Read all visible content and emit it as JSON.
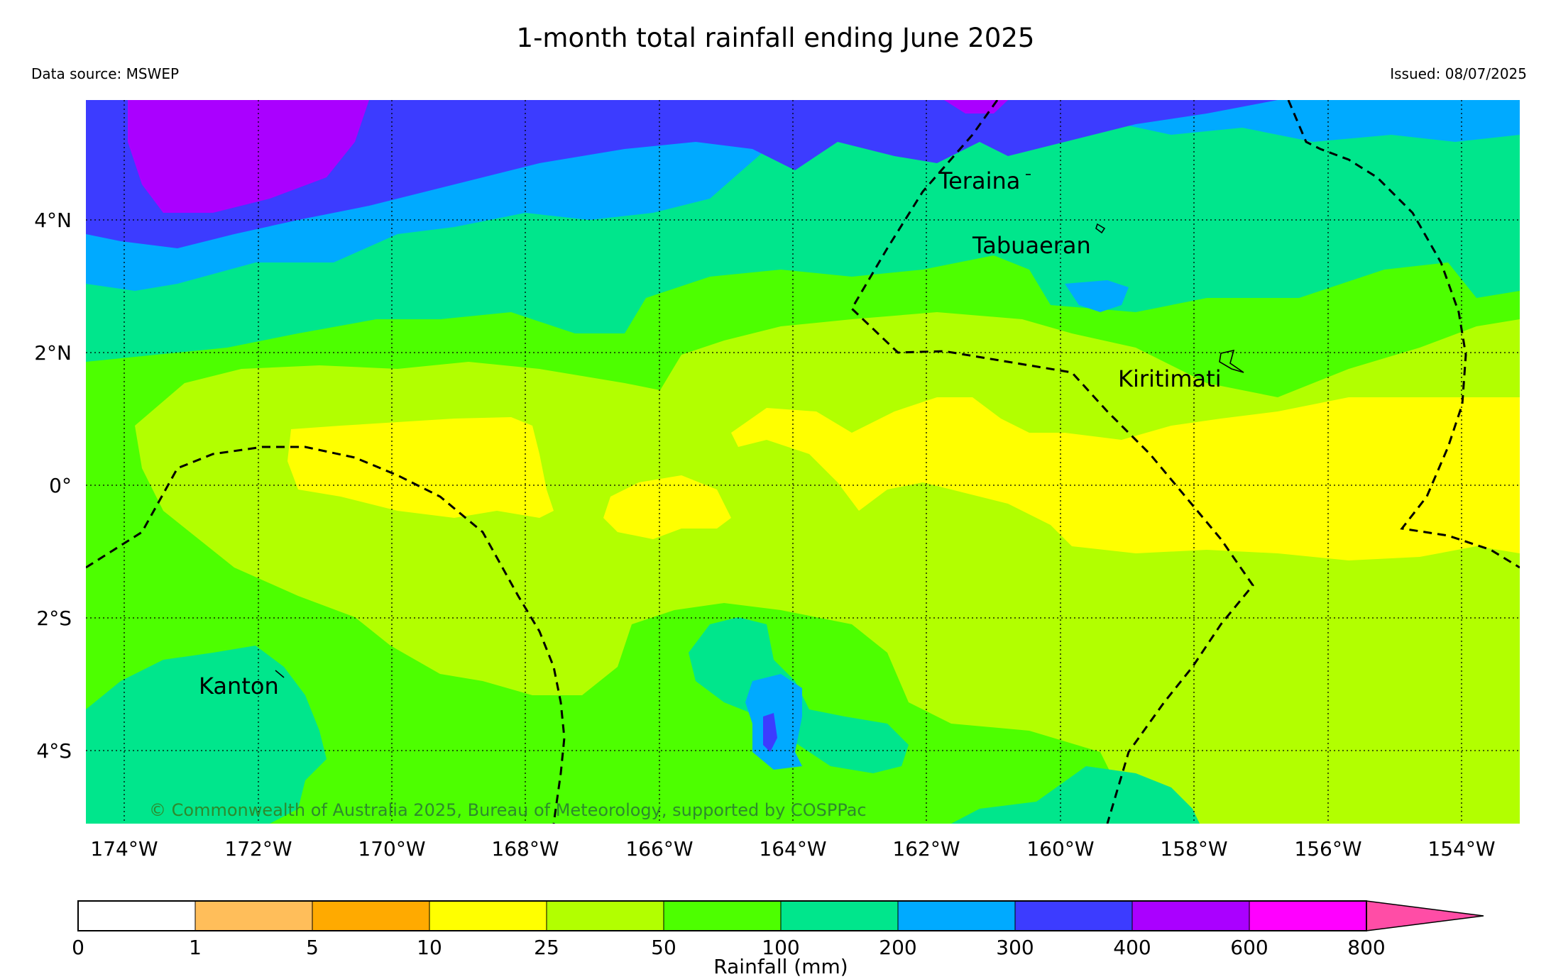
{
  "title": "1-month total rainfall ending June 2025",
  "data_source": "Data source: MSWEP",
  "issued": "Issued: 08/07/2025",
  "copyright": "© Commonwealth of Australia 2025, Bureau of Meteorology, supported by COSPPac",
  "map": {
    "lon_range": [
      -174.7,
      -153.0
    ],
    "lat_range": [
      -5.1,
      5.8
    ],
    "lon_ticks": [
      "174°W",
      "172°W",
      "170°W",
      "168°W",
      "166°W",
      "164°W",
      "162°W",
      "160°W",
      "158°W",
      "156°W",
      "154°W"
    ],
    "lat_ticks": [
      "4°N",
      "2°N",
      "0°",
      "2°S",
      "4°S"
    ],
    "grid": "dotted",
    "places": [
      "Teraina",
      "Tabuaeran",
      "Kiritimati",
      "Kanton"
    ]
  },
  "colorbar": {
    "label": "Rainfall (mm)",
    "bounds": [
      "0",
      "1",
      "5",
      "10",
      "25",
      "50",
      "100",
      "200",
      "300",
      "400",
      "600",
      "800"
    ],
    "colors": [
      "#ffffff",
      "#ffbe5a",
      "#ffaa00",
      "#ffff00",
      "#b2ff00",
      "#4dff00",
      "#00e68c",
      "#00aaff",
      "#3c3cff",
      "#aa00ff",
      "#ff00ff",
      "#ff4da6"
    ],
    "extend": "max"
  }
}
